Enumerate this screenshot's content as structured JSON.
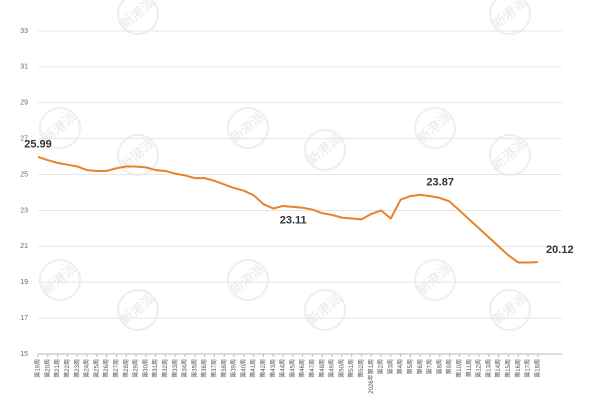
{
  "chart_data": {
    "type": "line",
    "watermark": "新港派",
    "categories": [
      "第19周",
      "第20周",
      "第21周",
      "第22周",
      "第23周",
      "第24周",
      "第25周",
      "第26周",
      "第27周",
      "第28周",
      "第29周",
      "第30周",
      "第31周",
      "第32周",
      "第33周",
      "第34周",
      "第35周",
      "第36周",
      "第37周",
      "第38周",
      "第39周",
      "第40周",
      "第41周",
      "第42周",
      "第43周",
      "第44周",
      "第45周",
      "第46周",
      "第47周",
      "第48周",
      "第49周",
      "第50周",
      "第51周",
      "第52周",
      "2026年第1周",
      "第2周",
      "第3周",
      "第4周",
      "第5周",
      "第6周",
      "第7周",
      "第8周",
      "第9周",
      "第10周",
      "第11周",
      "第12周",
      "第13周",
      "第14周",
      "第15周",
      "第16周",
      "第17周",
      "第18周"
    ],
    "values": [
      25.99,
      25.8,
      25.65,
      25.55,
      25.45,
      25.25,
      25.2,
      25.2,
      25.35,
      25.45,
      25.45,
      25.4,
      25.25,
      25.2,
      25.05,
      24.95,
      24.8,
      24.8,
      24.65,
      24.45,
      24.25,
      24.1,
      23.85,
      23.35,
      23.11,
      23.25,
      23.2,
      23.15,
      23.05,
      22.85,
      22.75,
      22.6,
      22.55,
      22.5,
      22.8,
      23.0,
      22.55,
      23.6,
      23.8,
      23.87,
      23.8,
      23.7,
      23.5,
      23.0,
      22.5,
      22.0,
      21.5,
      21.0,
      20.5,
      20.1,
      20.1,
      20.12
    ],
    "value_labels": [
      "25.99",
      null,
      null,
      null,
      null,
      null,
      null,
      null,
      null,
      null,
      null,
      null,
      null,
      null,
      null,
      null,
      null,
      null,
      null,
      null,
      null,
      null,
      null,
      null,
      "23.11",
      null,
      null,
      null,
      null,
      null,
      null,
      null,
      null,
      null,
      null,
      null,
      null,
      null,
      null,
      "23.87",
      null,
      null,
      null,
      null,
      null,
      null,
      null,
      null,
      null,
      null,
      null,
      "20.12"
    ],
    "color": "#e8832a",
    "ylim": [
      15,
      33
    ],
    "yticks": [
      15,
      17,
      19,
      21,
      23,
      25,
      27,
      29,
      31,
      33
    ],
    "grid": true
  }
}
